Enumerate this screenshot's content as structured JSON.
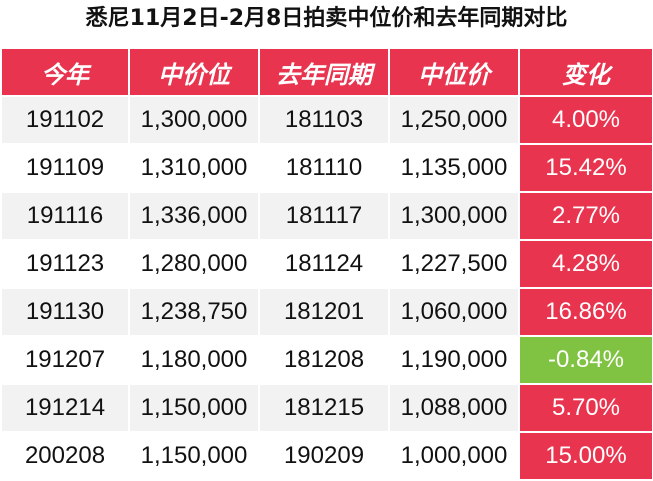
{
  "title": "悉尼11月2日-2月8日拍卖中位价和去年同期对比",
  "headers": [
    "今年",
    "中价位",
    "去年同期",
    "中位价",
    "变化"
  ],
  "colors": {
    "header_bg": "#e8344e",
    "increase_bg": "#e8344e",
    "decrease_bg": "#80c342",
    "stripe_bg": "#f2f2f2"
  },
  "rows": [
    {
      "this_year": "191102",
      "median": "1,300,000",
      "last_year": "181103",
      "last_median": "1,250,000",
      "change": "4.00%",
      "trend": "up"
    },
    {
      "this_year": "191109",
      "median": "1,310,000",
      "last_year": "181110",
      "last_median": "1,135,000",
      "change": "15.42%",
      "trend": "up"
    },
    {
      "this_year": "191116",
      "median": "1,336,000",
      "last_year": "181117",
      "last_median": "1,300,000",
      "change": "2.77%",
      "trend": "up"
    },
    {
      "this_year": "191123",
      "median": "1,280,000",
      "last_year": "181124",
      "last_median": "1,227,500",
      "change": "4.28%",
      "trend": "up"
    },
    {
      "this_year": "191130",
      "median": "1,238,750",
      "last_year": "181201",
      "last_median": "1,060,000",
      "change": "16.86%",
      "trend": "up"
    },
    {
      "this_year": "191207",
      "median": "1,180,000",
      "last_year": "181208",
      "last_median": "1,190,000",
      "change": "-0.84%",
      "trend": "down"
    },
    {
      "this_year": "191214",
      "median": "1,150,000",
      "last_year": "181215",
      "last_median": "1,088,000",
      "change": "5.70%",
      "trend": "up"
    },
    {
      "this_year": "200208",
      "median": "1,150,000",
      "last_year": "190209",
      "last_median": "1,000,000",
      "change": "15.00%",
      "trend": "up"
    }
  ]
}
